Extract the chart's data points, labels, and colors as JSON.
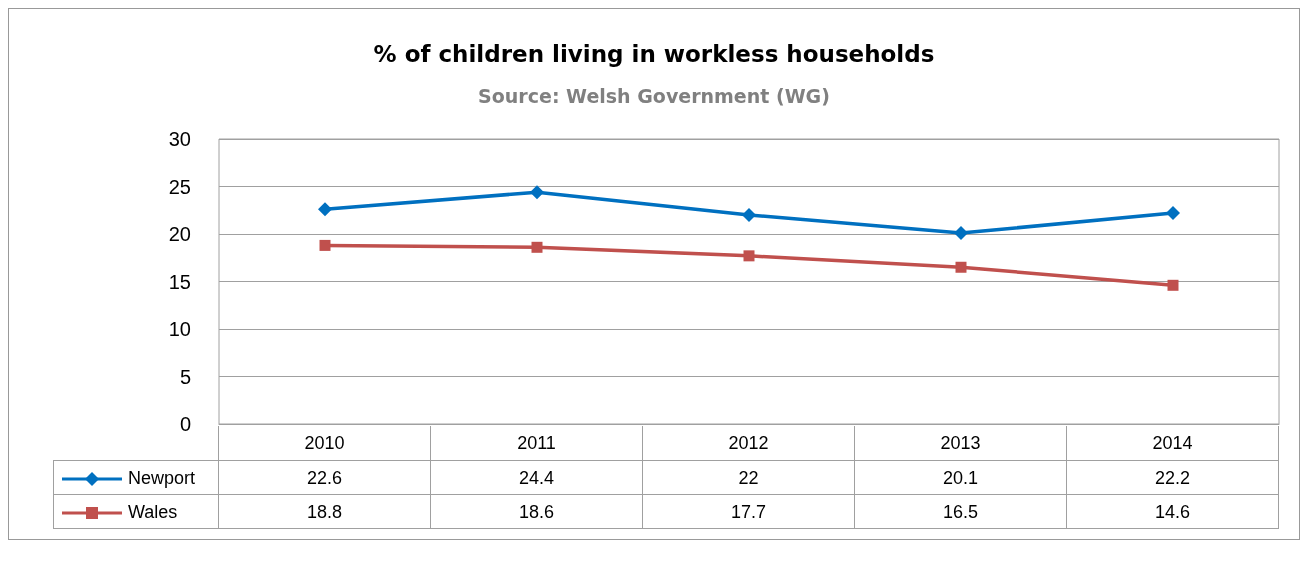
{
  "chart_data": {
    "type": "line",
    "title": "% of children living in workless households",
    "subtitle": "Source: Welsh Government (WG)",
    "categories": [
      "2010",
      "2011",
      "2012",
      "2013",
      "2014"
    ],
    "series": [
      {
        "name": "Newport",
        "color": "#0070c0",
        "marker": "diamond",
        "values": [
          22.6,
          24.4,
          22,
          20.1,
          22.2
        ]
      },
      {
        "name": "Wales",
        "color": "#c0504d",
        "marker": "square",
        "values": [
          18.8,
          18.6,
          17.7,
          16.5,
          14.6
        ]
      }
    ],
    "ylim": [
      0,
      30
    ],
    "yticks": [
      0,
      5,
      10,
      15,
      20,
      25,
      30
    ],
    "grid": "y",
    "legend": "bottom",
    "data_labels": true
  }
}
